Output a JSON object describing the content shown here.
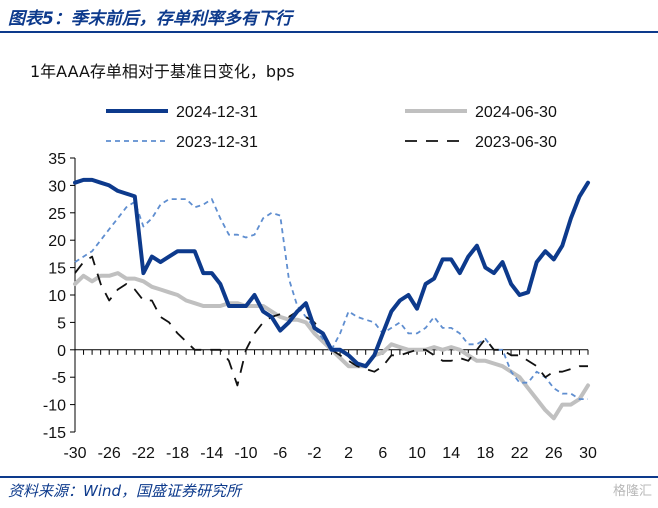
{
  "header": {
    "title": "图表5：季末前后，存单利率多有下行",
    "subtitle": "1年AAA存单相对于基准日变化，bps"
  },
  "footer": {
    "source": "资料来源：Wind，国盛证券研究所",
    "watermark": "格隆汇"
  },
  "chart_data": {
    "type": "line",
    "title": "图表5：季末前后，存单利率多有下行",
    "ylabel": "1年AAA存单相对于基准日变化，bps",
    "ylim": [
      -15,
      35
    ],
    "xlim": [
      -30,
      30
    ],
    "yticks": [
      35,
      30,
      25,
      20,
      15,
      10,
      5,
      0,
      -5,
      -10,
      -15
    ],
    "xticks": [
      -30,
      -26,
      -22,
      -18,
      -14,
      -10,
      -6,
      -2,
      2,
      6,
      10,
      14,
      18,
      22,
      26,
      30
    ],
    "grid": false,
    "legend_position": "top",
    "series": [
      {
        "name": "2024-12-31",
        "color": "#0d3a8c",
        "style": "solid-thick",
        "points": [
          [
            -30,
            30.5
          ],
          [
            -29,
            31
          ],
          [
            -28,
            31
          ],
          [
            -27,
            30.5
          ],
          [
            -26,
            30
          ],
          [
            -25,
            29
          ],
          [
            -24,
            28.5
          ],
          [
            -23,
            28
          ],
          [
            -22,
            14
          ],
          [
            -21,
            17
          ],
          [
            -20,
            16
          ],
          [
            -19,
            17
          ],
          [
            -18,
            18
          ],
          [
            -17,
            18
          ],
          [
            -16,
            18
          ],
          [
            -15,
            14
          ],
          [
            -14,
            14
          ],
          [
            -13,
            12
          ],
          [
            -12,
            8
          ],
          [
            -11,
            8
          ],
          [
            -10,
            8
          ],
          [
            -9,
            10
          ],
          [
            -8,
            7
          ],
          [
            -7,
            6
          ],
          [
            -6,
            3.5
          ],
          [
            -5,
            5
          ],
          [
            -4,
            7
          ],
          [
            -3,
            8.5
          ],
          [
            -2,
            4
          ],
          [
            -1,
            3
          ],
          [
            0,
            0
          ],
          [
            1,
            0
          ],
          [
            2,
            -1
          ],
          [
            3,
            -2.5
          ],
          [
            4,
            -3
          ],
          [
            5,
            -1
          ],
          [
            6,
            3
          ],
          [
            7,
            7
          ],
          [
            8,
            9
          ],
          [
            9,
            10
          ],
          [
            10,
            7.5
          ],
          [
            11,
            12
          ],
          [
            12,
            13
          ],
          [
            13,
            16.5
          ],
          [
            14,
            16.5
          ],
          [
            15,
            14
          ],
          [
            16,
            17
          ],
          [
            17,
            19
          ],
          [
            18,
            15
          ],
          [
            19,
            14
          ],
          [
            20,
            16
          ],
          [
            21,
            12
          ],
          [
            22,
            10
          ],
          [
            23,
            10.5
          ],
          [
            24,
            16
          ],
          [
            25,
            18
          ],
          [
            26,
            16.5
          ],
          [
            27,
            19
          ],
          [
            28,
            24
          ],
          [
            29,
            28
          ],
          [
            30,
            30.5
          ]
        ]
      },
      {
        "name": "2024-06-30",
        "color": "#c0c0c0",
        "style": "solid-thick",
        "points": [
          [
            -30,
            12
          ],
          [
            -29,
            13.5
          ],
          [
            -28,
            12.5
          ],
          [
            -27,
            13.5
          ],
          [
            -26,
            13.5
          ],
          [
            -25,
            14
          ],
          [
            -24,
            13
          ],
          [
            -23,
            13
          ],
          [
            -22,
            12.5
          ],
          [
            -21,
            11.5
          ],
          [
            -20,
            11
          ],
          [
            -19,
            10.5
          ],
          [
            -18,
            10
          ],
          [
            -17,
            9
          ],
          [
            -16,
            8.5
          ],
          [
            -15,
            8
          ],
          [
            -14,
            8
          ],
          [
            -13,
            8
          ],
          [
            -12,
            8.5
          ],
          [
            -11,
            8.5
          ],
          [
            -10,
            8
          ],
          [
            -9,
            8
          ],
          [
            -8,
            8
          ],
          [
            -7,
            7
          ],
          [
            -6,
            6
          ],
          [
            -5,
            5.5
          ],
          [
            -4,
            5.5
          ],
          [
            -3,
            5
          ],
          [
            -2,
            3
          ],
          [
            -1,
            1.5
          ],
          [
            0,
            0
          ],
          [
            1,
            -1.5
          ],
          [
            2,
            -3
          ],
          [
            3,
            -3
          ],
          [
            4,
            -3
          ],
          [
            5,
            -1
          ],
          [
            6,
            -0.5
          ],
          [
            7,
            1
          ],
          [
            8,
            0.5
          ],
          [
            9,
            0
          ],
          [
            10,
            0
          ],
          [
            11,
            0
          ],
          [
            12,
            0.5
          ],
          [
            13,
            0
          ],
          [
            14,
            0.5
          ],
          [
            15,
            0
          ],
          [
            16,
            -1
          ],
          [
            17,
            -2
          ],
          [
            18,
            -2
          ],
          [
            19,
            -2.5
          ],
          [
            20,
            -3
          ],
          [
            21,
            -4
          ],
          [
            22,
            -5
          ],
          [
            23,
            -7
          ],
          [
            24,
            -9
          ],
          [
            25,
            -11
          ],
          [
            26,
            -12.5
          ],
          [
            27,
            -10
          ],
          [
            28,
            -10
          ],
          [
            29,
            -9
          ],
          [
            30,
            -6.5
          ]
        ]
      },
      {
        "name": "2023-12-31",
        "color": "#5f8ed0",
        "style": "short-dash",
        "points": [
          [
            -30,
            16
          ],
          [
            -29,
            17
          ],
          [
            -28,
            18
          ],
          [
            -27,
            20
          ],
          [
            -26,
            22
          ],
          [
            -25,
            24
          ],
          [
            -24,
            26
          ],
          [
            -23,
            27
          ],
          [
            -22,
            22.5
          ],
          [
            -21,
            24
          ],
          [
            -20,
            26.5
          ],
          [
            -19,
            27.5
          ],
          [
            -18,
            27.5
          ],
          [
            -17,
            27.5
          ],
          [
            -16,
            26
          ],
          [
            -15,
            26.5
          ],
          [
            -14,
            27.5
          ],
          [
            -13,
            24
          ],
          [
            -12,
            21
          ],
          [
            -11,
            21
          ],
          [
            -10,
            20.5
          ],
          [
            -9,
            21
          ],
          [
            -8,
            24
          ],
          [
            -7,
            25
          ],
          [
            -6,
            24.5
          ],
          [
            -5,
            13
          ],
          [
            -4,
            8
          ],
          [
            -3,
            6
          ],
          [
            -2,
            4
          ],
          [
            -1,
            2
          ],
          [
            0,
            0
          ],
          [
            1,
            3
          ],
          [
            2,
            7
          ],
          [
            3,
            6
          ],
          [
            4,
            5.5
          ],
          [
            5,
            5
          ],
          [
            6,
            3
          ],
          [
            7,
            4
          ],
          [
            8,
            5
          ],
          [
            9,
            3
          ],
          [
            10,
            3
          ],
          [
            11,
            4
          ],
          [
            12,
            6
          ],
          [
            13,
            4
          ],
          [
            14,
            4
          ],
          [
            15,
            3
          ],
          [
            16,
            1
          ],
          [
            17,
            1
          ],
          [
            18,
            2
          ],
          [
            19,
            0
          ],
          [
            20,
            0
          ],
          [
            21,
            -4
          ],
          [
            22,
            -6
          ],
          [
            23,
            -6
          ],
          [
            24,
            -4
          ],
          [
            25,
            -5
          ],
          [
            26,
            -7
          ],
          [
            27,
            -8
          ],
          [
            28,
            -8
          ],
          [
            29,
            -9
          ],
          [
            30,
            -9
          ]
        ]
      },
      {
        "name": "2023-06-30",
        "color": "#111111",
        "style": "long-dash",
        "points": [
          [
            -30,
            14
          ],
          [
            -29,
            16
          ],
          [
            -28,
            17
          ],
          [
            -27,
            12
          ],
          [
            -26,
            9
          ],
          [
            -25,
            11
          ],
          [
            -24,
            12
          ],
          [
            -23,
            11
          ],
          [
            -22,
            9
          ],
          [
            -21,
            9
          ],
          [
            -20,
            6
          ],
          [
            -19,
            5
          ],
          [
            -18,
            3
          ],
          [
            -17,
            1.5
          ],
          [
            -16,
            0
          ],
          [
            -15,
            0
          ],
          [
            -14,
            0
          ],
          [
            -13,
            0
          ],
          [
            -12,
            -2
          ],
          [
            -11,
            -6.5
          ],
          [
            -10,
            0
          ],
          [
            -9,
            3
          ],
          [
            -8,
            5
          ],
          [
            -7,
            6
          ],
          [
            -6,
            6.5
          ],
          [
            -5,
            6
          ],
          [
            -4,
            7
          ],
          [
            -3,
            6
          ],
          [
            -2,
            5
          ],
          [
            -1,
            3
          ],
          [
            0,
            0
          ],
          [
            1,
            -1
          ],
          [
            2,
            -2
          ],
          [
            3,
            -3
          ],
          [
            4,
            -3.5
          ],
          [
            5,
            -4
          ],
          [
            6,
            -3
          ],
          [
            7,
            -1
          ],
          [
            8,
            -1
          ],
          [
            9,
            -0.5
          ],
          [
            10,
            0
          ],
          [
            11,
            0
          ],
          [
            12,
            -1
          ],
          [
            13,
            -2
          ],
          [
            14,
            -2
          ],
          [
            15,
            -1.5
          ],
          [
            16,
            -2
          ],
          [
            17,
            0
          ],
          [
            18,
            2
          ],
          [
            19,
            0
          ],
          [
            20,
            0
          ],
          [
            21,
            -1
          ],
          [
            22,
            -1
          ],
          [
            23,
            -2
          ],
          [
            24,
            -3
          ],
          [
            25,
            -5
          ],
          [
            26,
            -4
          ],
          [
            27,
            -4
          ],
          [
            28,
            -3.5
          ],
          [
            29,
            -3
          ],
          [
            30,
            -3
          ]
        ]
      }
    ]
  }
}
